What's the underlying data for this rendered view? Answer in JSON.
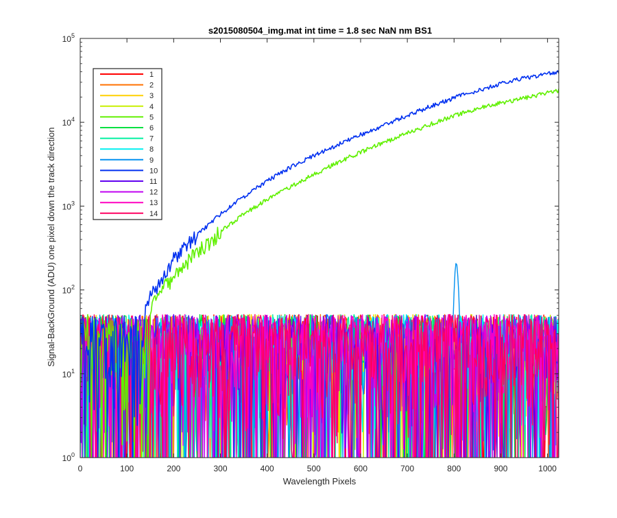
{
  "chart_data": {
    "type": "line",
    "title": "s2015080504_img.mat int time = 1.8 sec  NaN nm BS1",
    "xlabel": "Wavelength Pixels",
    "ylabel": "Signal-BackGround (ADU) one pixel down the track direction",
    "xlim": [
      0,
      1024
    ],
    "ylim": [
      1,
      100000
    ],
    "yscale": "log",
    "grid": false,
    "legend_position": "top-left",
    "x_ticks": [
      0,
      100,
      200,
      300,
      400,
      500,
      600,
      700,
      800,
      900,
      1000
    ],
    "x_tick_labels": [
      "0",
      "100",
      "200",
      "300",
      "400",
      "500",
      "600",
      "700",
      "800",
      "900",
      "1000"
    ],
    "y_ticks": [
      {
        "value": 1,
        "base": "10",
        "exp": "0"
      },
      {
        "value": 10,
        "base": "10",
        "exp": "1"
      },
      {
        "value": 100,
        "base": "10",
        "exp": "2"
      },
      {
        "value": 1000,
        "base": "10",
        "exp": "3"
      },
      {
        "value": 10000,
        "base": "10",
        "exp": "4"
      },
      {
        "value": 100000,
        "base": "10",
        "exp": "5"
      }
    ],
    "noise_floor": {
      "x_range": [
        0,
        1024
      ],
      "y_range": [
        1,
        60
      ],
      "typical_max": 50
    },
    "series": [
      {
        "name": "1",
        "color": "#ff0000",
        "kind": "noise"
      },
      {
        "name": "2",
        "color": "#ff7000",
        "kind": "noise"
      },
      {
        "name": "3",
        "color": "#ffd000",
        "kind": "noise"
      },
      {
        "name": "4",
        "color": "#c8f000",
        "kind": "noise"
      },
      {
        "name": "5",
        "color": "#60f000",
        "kind": "signal",
        "x": [
          150,
          170,
          200,
          250,
          300,
          350,
          400,
          450,
          500,
          550,
          600,
          650,
          700,
          750,
          800,
          850,
          900,
          950,
          1000,
          1024
        ],
        "y": [
          60,
          90,
          150,
          280,
          500,
          800,
          1200,
          1700,
          2400,
          3300,
          4400,
          5700,
          7400,
          9500,
          12000,
          14500,
          17000,
          19500,
          22500,
          24000
        ]
      },
      {
        "name": "6",
        "color": "#00e040",
        "kind": "noise"
      },
      {
        "name": "7",
        "color": "#00f0a0",
        "kind": "noise"
      },
      {
        "name": "8",
        "color": "#00f0f0",
        "kind": "noise"
      },
      {
        "name": "9",
        "color": "#0090f0",
        "kind": "noise",
        "peak": {
          "x": 805,
          "y": 220
        }
      },
      {
        "name": "10",
        "color": "#0030f0",
        "kind": "signal",
        "x": [
          140,
          170,
          200,
          250,
          300,
          350,
          400,
          450,
          500,
          550,
          600,
          650,
          700,
          750,
          800,
          850,
          900,
          950,
          1000,
          1024
        ],
        "y": [
          70,
          130,
          230,
          450,
          800,
          1300,
          2000,
          2900,
          4000,
          5400,
          7100,
          9200,
          12000,
          15500,
          19500,
          24000,
          29000,
          33500,
          37500,
          40000
        ]
      },
      {
        "name": "11",
        "color": "#6000f0",
        "kind": "noise"
      },
      {
        "name": "12",
        "color": "#c000f0",
        "kind": "noise"
      },
      {
        "name": "13",
        "color": "#ff00c0",
        "kind": "noise"
      },
      {
        "name": "14",
        "color": "#ff0060",
        "kind": "noise"
      }
    ]
  }
}
